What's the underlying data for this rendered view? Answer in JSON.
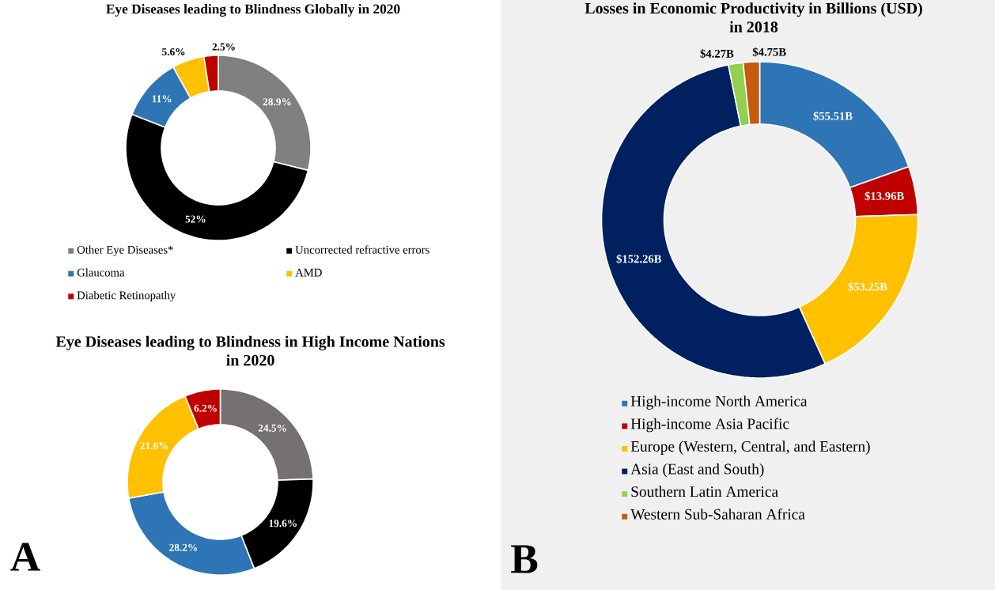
{
  "chart_data": [
    {
      "type": "donut",
      "title": "Eye Diseases leading to Blindness Globally in 2020",
      "categories": [
        "Other Eye Diseases*",
        "Uncorrected refractive errors",
        "Glaucoma",
        "AMD",
        "Diabetic Retinopathy"
      ],
      "values": [
        28.9,
        52,
        11,
        5.6,
        2.5
      ],
      "colors": [
        "#808080",
        "#000000",
        "#2e75b6",
        "#ffc000",
        "#c00000"
      ],
      "value_labels": [
        "28.9%",
        "52%",
        "11%",
        "5.6%",
        "2.5%"
      ],
      "legend": "bottom"
    },
    {
      "type": "donut",
      "title": "Eye Diseases leading to Blindness in High Income Nations in 2020",
      "categories": [
        null,
        null,
        null,
        null,
        null
      ],
      "values": [
        24.5,
        19.6,
        28.2,
        21.6,
        6.2
      ],
      "colors": [
        "#767171",
        "#000000",
        "#2e75b6",
        "#ffc000",
        "#c00000"
      ],
      "value_labels": [
        "24.5%",
        "19.6%",
        "28.2%",
        "21.6%",
        "6.2%"
      ],
      "annotations": [
        "A"
      ]
    },
    {
      "type": "donut",
      "title": "Losses in Economic Productivity in Billions (USD) in 2018",
      "categories": [
        "High-income North America",
        "High-income Asia Pacific",
        "Europe (Western, Central, and Eastern)",
        "Asia (East and South)",
        "Southern Latin America",
        "Western Sub-Saharan Africa"
      ],
      "values": [
        55.51,
        13.96,
        53.25,
        152.26,
        4.27,
        4.75
      ],
      "colors": [
        "#2e75b6",
        "#c00000",
        "#ffc000",
        "#002060",
        "#92d050",
        "#c55a11"
      ],
      "value_labels": [
        "$55.51B",
        "$13.96B",
        "$53.25B",
        "$152.26B",
        "$4.27B",
        "$4.75B"
      ],
      "legend": "bottom",
      "annotations": [
        "B"
      ]
    }
  ]
}
